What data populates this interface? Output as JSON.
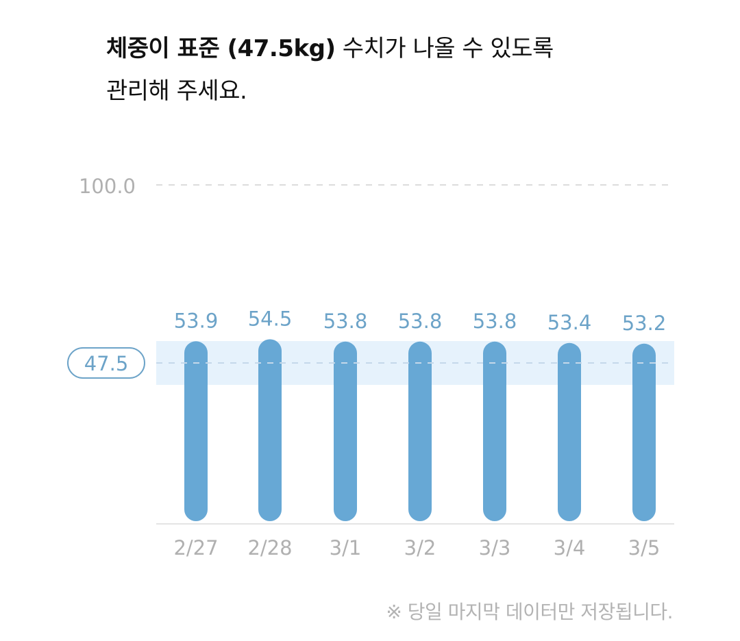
{
  "headline": {
    "bold_part": "체중이 표준 (47.5kg)",
    "rest_line1": " 수치가 나올 수 있도록",
    "line2": "관리해 주세요."
  },
  "chart_data": {
    "type": "bar",
    "categories": [
      "2/27",
      "2/28",
      "3/1",
      "3/2",
      "3/3",
      "3/4",
      "3/5"
    ],
    "values": [
      53.9,
      54.5,
      53.8,
      53.8,
      53.8,
      53.4,
      53.2
    ],
    "value_labels": [
      "53.9",
      "54.5",
      "53.8",
      "53.8",
      "53.8",
      "53.4",
      "53.2"
    ],
    "ytick_labels": [
      "100.0"
    ],
    "ytick_values": [
      100.0
    ],
    "reference": {
      "value": 47.5,
      "label": "47.5"
    },
    "ylim": [
      0,
      100
    ],
    "grid": "dashed",
    "colors": {
      "bar": "#67a8d5",
      "label": "#6ca3c8",
      "band": "#e6f2fc",
      "axis_text": "#b0b0b0",
      "ref_outline": "#6ca3c8"
    }
  },
  "footnote": "※ 당일 마지막 데이터만 저장됩니다."
}
